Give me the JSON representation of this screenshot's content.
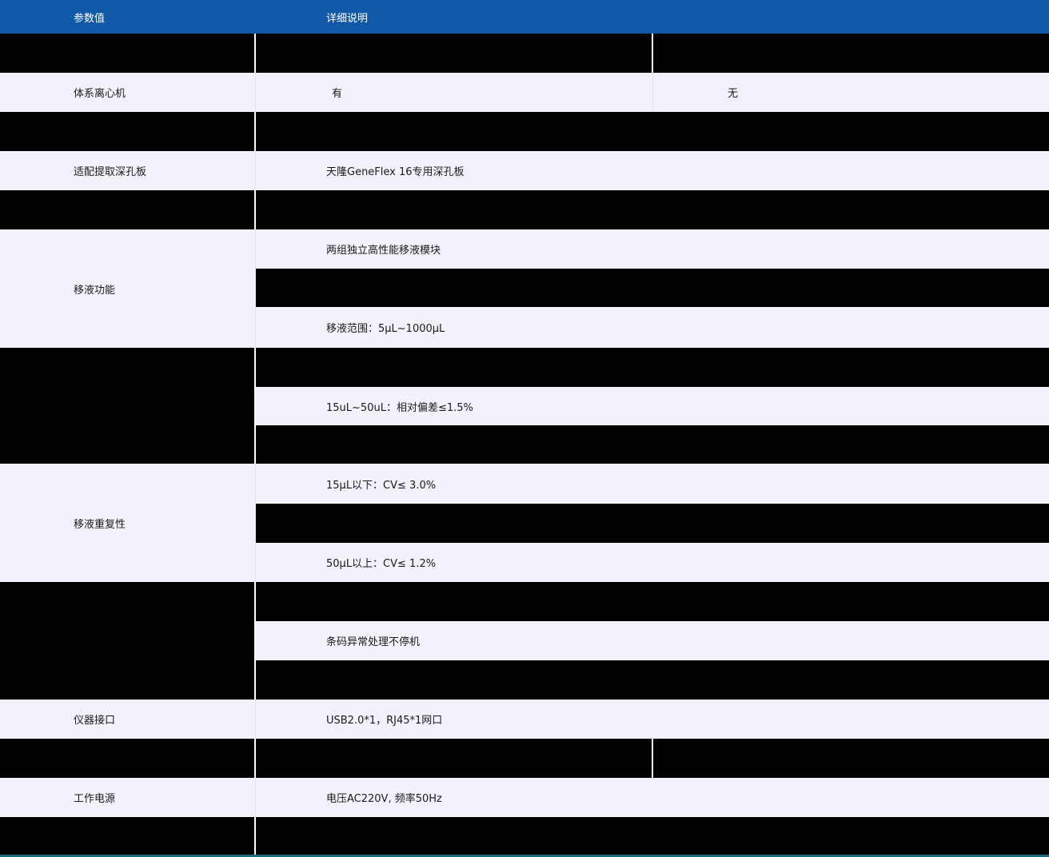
{
  "colors": {
    "header_bg": "#1159a8",
    "row_light_bg": "#f2f2fb",
    "redacted_bg": "#000000",
    "header_text": "#ffffff",
    "body_text": "#1a1a1a",
    "bottom_border": "#1a6b7f"
  },
  "header": {
    "param_col": "参数值",
    "detail_col": "详细说明"
  },
  "rows": {
    "centrifuge": {
      "label": "体系离心机",
      "detail": "有",
      "detail2": "无"
    },
    "deep_well_plate": {
      "label": "适配提取深孔板",
      "detail": "天隆GeneFlex 16专用深孔板"
    },
    "pipetting": {
      "label": "移液功能",
      "detail_line1": "两组独立高性能移液模块",
      "detail_line2": "移液范围：5μL~1000μL"
    },
    "pipetting_accuracy": {
      "detail": "15uL~50uL：相对偏差≤1.5%"
    },
    "pipetting_repeatability": {
      "label": "移液重复性",
      "detail_line1": "15μL以下：CV≤ 3.0%",
      "detail_line2": "50μL以上：CV≤ 1.2%"
    },
    "barcode": {
      "detail": "条码异常处理不停机"
    },
    "interface": {
      "label": "仪器接口",
      "detail": "USB2.0*1，RJ45*1网口"
    },
    "power": {
      "label": "工作电源",
      "detail": "电压AC220V, 频率50Hz"
    }
  }
}
